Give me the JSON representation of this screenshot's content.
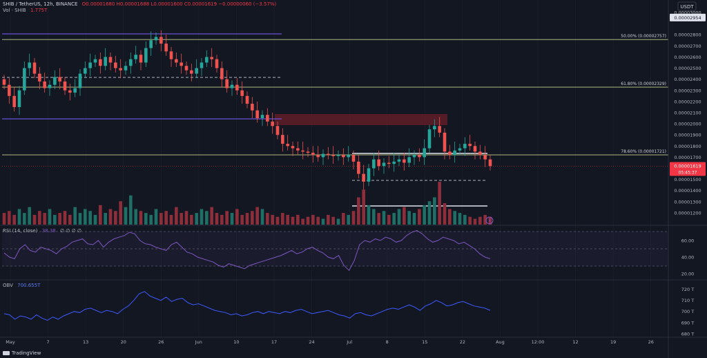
{
  "header": {
    "symbol": "SHIB / TetherUS, 12h, BINANCE",
    "ohlc": "O0.00001680 H0.00001688 L0.00001600 C0.00001619 −0.00000060 (−3.57%)",
    "volume_label": "Vol · SHIB",
    "volume_value": "1.775T"
  },
  "rsi_panel": {
    "label": "RSI (14, close)",
    "value": "38.38",
    "extra": "∅ ∅ ∅ ∅"
  },
  "obv_panel": {
    "label": "OBV",
    "value": "700.655T"
  },
  "currency": "USDT",
  "footer": {
    "brand": "TradingView"
  },
  "colors": {
    "up": "#26a69a",
    "down": "#ef5350",
    "accent": "#7e57c2",
    "background": "#131722"
  },
  "chart_data": [
    {
      "type": "candlestick",
      "x_ticks": [
        "May",
        "7",
        "13",
        "20",
        "26",
        "Jun",
        "10",
        "17",
        "24",
        "Jul",
        "8",
        "15",
        "22",
        "Aug",
        "12:00",
        "12",
        "19",
        "26"
      ],
      "y_ticks": [
        "0.00003000",
        "0.00002954",
        "0.00002800",
        "0.00002700",
        "0.00002600",
        "0.00002500",
        "0.00002400",
        "0.00002300",
        "0.00002200",
        "0.00002100",
        "0.00002000",
        "0.00001900",
        "0.00001800",
        "0.00001700",
        "0.00001600",
        "0.00001500",
        "0.00001400",
        "0.00001300",
        "0.00001200"
      ],
      "ylim": [
        1.15e-05,
        3e-05
      ],
      "fib_levels": [
        {
          "label": "50.00% (0.00002757)",
          "value": 2.757e-05
        },
        {
          "label": "61.80% (0.00002329)",
          "value": 2.329e-05
        },
        {
          "label": "78.60% (0.00001721)",
          "value": 1.721e-05
        }
      ],
      "price_tags": [
        {
          "value": "0.00002954",
          "style": "white"
        },
        {
          "value": "0.00001619",
          "countdown": "05:45:37",
          "style": "red"
        }
      ],
      "close_series": [
        2.35,
        2.25,
        2.15,
        2.3,
        2.5,
        2.55,
        2.45,
        2.38,
        2.32,
        2.35,
        2.42,
        2.38,
        2.3,
        2.28,
        2.32,
        2.45,
        2.5,
        2.55,
        2.58,
        2.52,
        2.6,
        2.55,
        2.5,
        2.48,
        2.52,
        2.58,
        2.62,
        2.55,
        2.68,
        2.75,
        2.78,
        2.72,
        2.65,
        2.58,
        2.55,
        2.52,
        2.48,
        2.45,
        2.5,
        2.55,
        2.6,
        2.58,
        2.5,
        2.4,
        2.32,
        2.35,
        2.3,
        2.25,
        2.18,
        2.12,
        2.05,
        2.08,
        2.02,
        1.98,
        1.9,
        1.82,
        1.8,
        1.78,
        1.76,
        1.75,
        1.74,
        1.72,
        1.7,
        1.73,
        1.72,
        1.71,
        1.72,
        1.7,
        1.72,
        1.66,
        1.55,
        1.48,
        1.6,
        1.68,
        1.62,
        1.65,
        1.64,
        1.66,
        1.68,
        1.65,
        1.7,
        1.72,
        1.7,
        1.78,
        1.95,
        1.98,
        1.92,
        1.75,
        1.72,
        1.76,
        1.78,
        1.82,
        1.8,
        1.75,
        1.72,
        1.68,
        1.62
      ],
      "volume_series": [
        6,
        7,
        5,
        8,
        6,
        9,
        5,
        7,
        6,
        8,
        5,
        6,
        7,
        5,
        9,
        6,
        8,
        7,
        5,
        10,
        6,
        8,
        7,
        12,
        9,
        15,
        8,
        7,
        6,
        5,
        8,
        6,
        7,
        5,
        9,
        6,
        7,
        5,
        6,
        8,
        7,
        9,
        6,
        5,
        7,
        6,
        8,
        5,
        6,
        7,
        9,
        8,
        6,
        5,
        4,
        6,
        5,
        4,
        5,
        3,
        4,
        5,
        4,
        3,
        5,
        4,
        3,
        6,
        5,
        7,
        14,
        18,
        10,
        8,
        6,
        7,
        5,
        6,
        8,
        9,
        7,
        6,
        8,
        10,
        12,
        14,
        22,
        11,
        8,
        7,
        6,
        5,
        4,
        3,
        4,
        5,
        4
      ]
    },
    {
      "type": "line",
      "name": "RSI (14, close)",
      "y_ticks": [
        "60.00",
        "40.00",
        "20.00"
      ],
      "ylim": [
        15,
        75
      ],
      "values": [
        45,
        40,
        38,
        50,
        55,
        48,
        46,
        52,
        50,
        48,
        44,
        50,
        53,
        58,
        60,
        62,
        56,
        55,
        60,
        52,
        58,
        62,
        64,
        66,
        70,
        68,
        60,
        56,
        55,
        52,
        50,
        48,
        55,
        58,
        52,
        46,
        44,
        40,
        38,
        36,
        34,
        30,
        28,
        32,
        30,
        28,
        26,
        30,
        32,
        34,
        36,
        38,
        40,
        42,
        45,
        48,
        44,
        46,
        50,
        52,
        48,
        45,
        40,
        38,
        42,
        30,
        24,
        36,
        55,
        60,
        58,
        62,
        60,
        64,
        62,
        58,
        60,
        66,
        70,
        72,
        68,
        62,
        58,
        60,
        64,
        62,
        60,
        56,
        58,
        54,
        50,
        44,
        40,
        38
      ]
    },
    {
      "type": "line",
      "name": "OBV",
      "y_ticks": [
        "720 T",
        "710 T",
        "700 T",
        "690 T",
        "680 T"
      ],
      "ylim": [
        678,
        726
      ],
      "values": [
        698,
        697,
        693,
        696,
        695,
        693,
        697,
        694,
        692,
        695,
        693,
        696,
        698,
        700,
        699,
        702,
        703,
        701,
        699,
        701,
        700,
        698,
        702,
        705,
        710,
        716,
        718,
        714,
        712,
        710,
        713,
        709,
        711,
        712,
        708,
        706,
        707,
        705,
        703,
        701,
        700,
        699,
        697,
        698,
        696,
        697,
        699,
        700,
        698,
        700,
        699,
        698,
        700,
        699,
        701,
        702,
        700,
        698,
        699,
        700,
        701,
        699,
        697,
        696,
        694,
        698,
        699,
        697,
        696,
        698,
        700,
        702,
        703,
        702,
        704,
        706,
        704,
        701,
        705,
        707,
        710,
        708,
        705,
        706,
        708,
        709,
        707,
        705,
        704,
        703,
        701
      ]
    }
  ]
}
